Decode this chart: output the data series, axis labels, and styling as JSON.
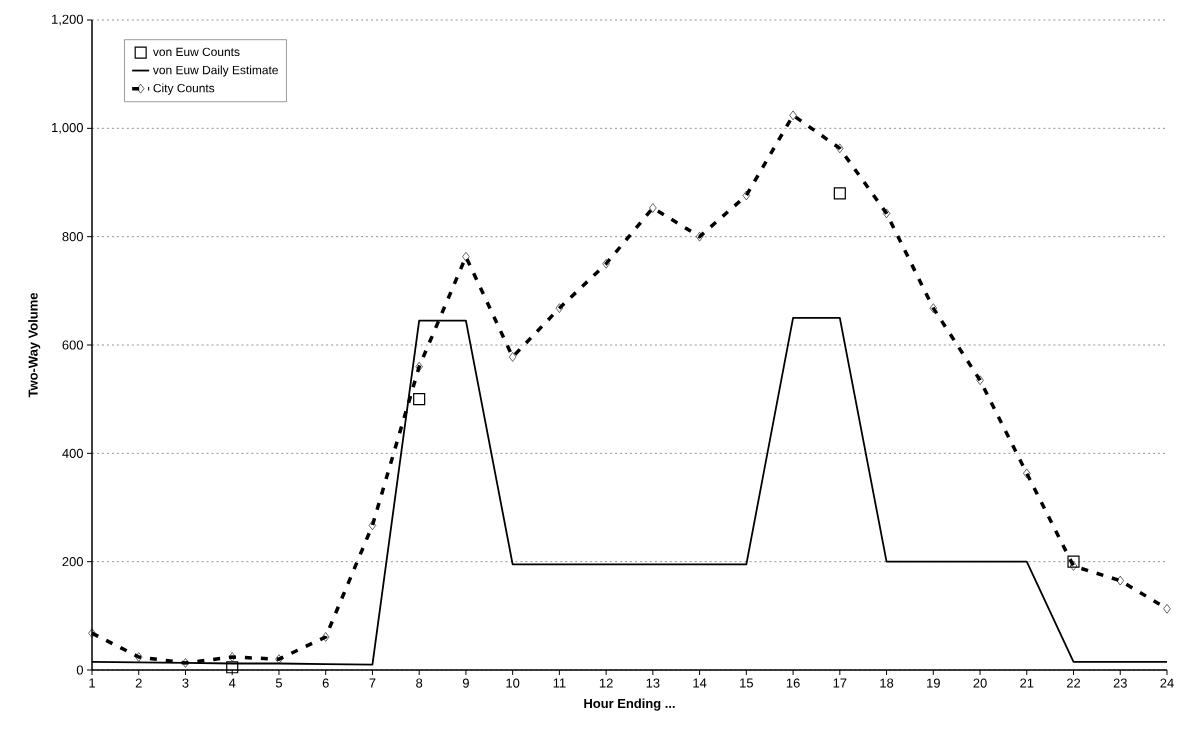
{
  "chart_data": {
    "type": "line",
    "xlabel": "Hour Ending ...",
    "ylabel": "Two-Way Volume",
    "x": [
      1,
      2,
      3,
      4,
      5,
      6,
      7,
      8,
      9,
      10,
      11,
      12,
      13,
      14,
      15,
      16,
      17,
      18,
      19,
      20,
      21,
      22,
      23,
      24
    ],
    "series": [
      {
        "name": "von Euw Counts",
        "type": "scatter",
        "color": "#000000",
        "marker": "square",
        "x": [
          4,
          8,
          17,
          22
        ],
        "values": [
          5,
          500,
          880,
          200
        ]
      },
      {
        "name": "von Euw Daily Estimate",
        "color": "#000000",
        "marker": "none",
        "line_style": "solid",
        "values": [
          15,
          14,
          13,
          12,
          12,
          11,
          10,
          645,
          645,
          195,
          195,
          195,
          195,
          195,
          195,
          650,
          650,
          200,
          200,
          200,
          200,
          15,
          15,
          15
        ]
      },
      {
        "name": "City Counts",
        "color": "#000000",
        "marker": "diamond",
        "line_style": "dashed",
        "values": [
          68,
          24,
          13,
          24,
          20,
          61,
          267,
          560,
          763,
          578,
          668,
          750,
          853,
          800,
          876,
          1024,
          963,
          843,
          668,
          535,
          363,
          192,
          165,
          113
        ]
      }
    ],
    "xlim": [
      1,
      24
    ],
    "xticks": [
      1,
      2,
      3,
      4,
      5,
      6,
      7,
      8,
      9,
      10,
      11,
      12,
      13,
      14,
      15,
      16,
      17,
      18,
      19,
      20,
      21,
      22,
      23,
      24
    ],
    "ylim": [
      0,
      1200
    ],
    "yticks": [
      0,
      200,
      400,
      600,
      800,
      {
        "value": 1000,
        "label": "1,000"
      },
      {
        "value": 1200,
        "label": "1,200"
      }
    ],
    "grid": "y",
    "legend": "top left"
  }
}
